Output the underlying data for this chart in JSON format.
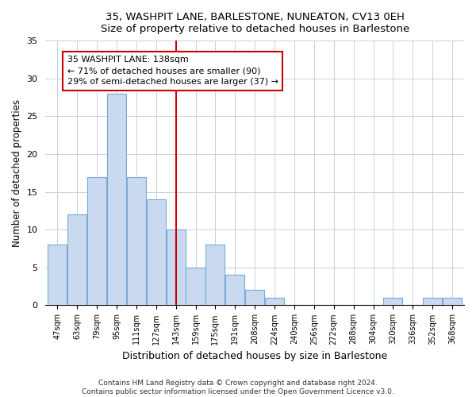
{
  "title1": "35, WASHPIT LANE, BARLESTONE, NUNEATON, CV13 0EH",
  "title2": "Size of property relative to detached houses in Barlestone",
  "xlabel": "Distribution of detached houses by size in Barlestone",
  "ylabel": "Number of detached properties",
  "bin_labels": [
    "47sqm",
    "63sqm",
    "79sqm",
    "95sqm",
    "111sqm",
    "127sqm",
    "143sqm",
    "159sqm",
    "175sqm",
    "191sqm",
    "208sqm",
    "224sqm",
    "240sqm",
    "256sqm",
    "272sqm",
    "288sqm",
    "304sqm",
    "320sqm",
    "336sqm",
    "352sqm",
    "368sqm"
  ],
  "bar_heights": [
    8,
    12,
    17,
    28,
    17,
    14,
    10,
    5,
    8,
    4,
    2,
    1,
    0,
    0,
    0,
    0,
    0,
    1,
    0,
    1,
    1
  ],
  "bar_color": "#c8d9f0",
  "bar_edge_color": "#7aaad0",
  "vline_color": "#cc0000",
  "annotation_title": "35 WASHPIT LANE: 138sqm",
  "annotation_line1": "← 71% of detached houses are smaller (90)",
  "annotation_line2": "29% of semi-detached houses are larger (37) →",
  "annotation_box_color": "#ffffff",
  "annotation_box_edge": "#cc0000",
  "ylim": [
    0,
    35
  ],
  "yticks": [
    0,
    5,
    10,
    15,
    20,
    25,
    30,
    35
  ],
  "footer1": "Contains HM Land Registry data © Crown copyright and database right 2024.",
  "footer2": "Contains public sector information licensed under the Open Government Licence v3.0."
}
